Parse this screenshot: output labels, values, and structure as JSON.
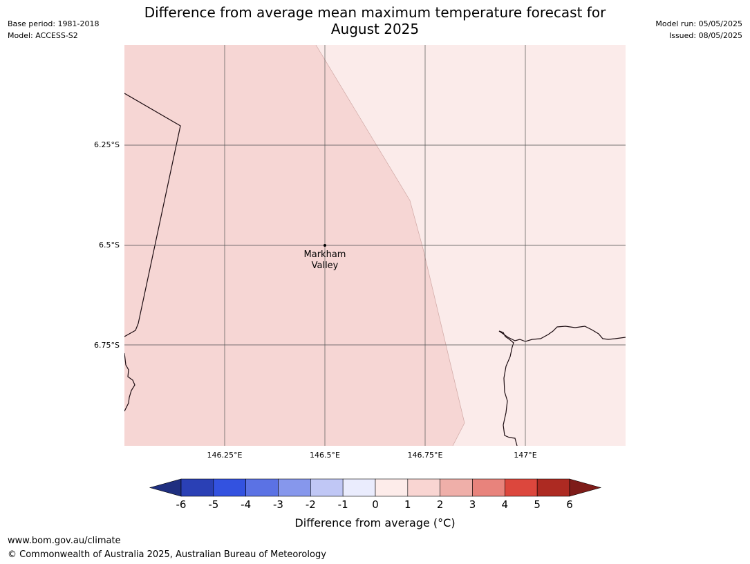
{
  "header": {
    "title_line1": "Difference from average mean maximum temperature forecast for",
    "title_line2": "August 2025",
    "base_period": "Base period: 1981-2018",
    "model": "Model: ACCESS-S2",
    "model_run": "Model run: 05/05/2025",
    "issued": "Issued: 08/05/2025"
  },
  "map": {
    "lat_labels": [
      "6.25°S",
      "6.5°S",
      "6.75°S"
    ],
    "lon_labels": [
      "146.25°E",
      "146.5°E",
      "146.75°E",
      "147°E"
    ],
    "place": {
      "name_line1": "Markham",
      "name_line2": "Valley"
    },
    "colors": {
      "zone_1_to_2": "#f6d6d4",
      "zone_0_to_1": "#fbebea",
      "coastline": "#1a0a0f",
      "grid": "#555555"
    }
  },
  "colorbar": {
    "label": "Difference from average (°C)",
    "ticks": [
      "-6",
      "-5",
      "-4",
      "-3",
      "-2",
      "-1",
      "0",
      "1",
      "2",
      "3",
      "4",
      "5",
      "6"
    ],
    "colors": [
      "#1f2f80",
      "#2a40b5",
      "#3352e0",
      "#5b72e4",
      "#8697ec",
      "#c0c7f5",
      "#eaecfd",
      "#fdecea",
      "#f9d5d2",
      "#efafa9",
      "#e8837c",
      "#dc473d",
      "#ad2a22",
      "#7e1c19"
    ]
  },
  "footer": {
    "url": "www.bom.gov.au/climate",
    "copyright": "© Commonwealth of Australia 2025, Australian Bureau of Meteorology"
  }
}
